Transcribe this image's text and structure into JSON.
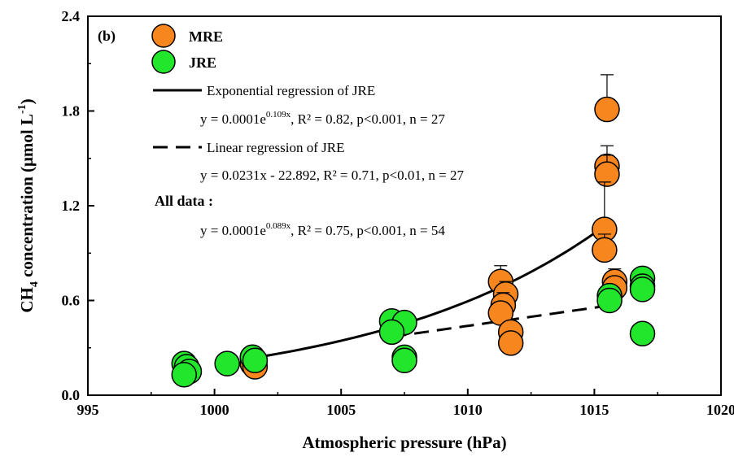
{
  "colors": {
    "MRE": "#f7861e",
    "JRE": "#22e62c",
    "stroke": "#000000"
  },
  "chart_data": {
    "type": "scatter",
    "panel_label": "(b)",
    "xlabel": "Atmospheric pressure (hPa)",
    "ylabel_parts": {
      "pre": "CH",
      "sub": "4",
      "mid": " concentration (μmol L",
      "sup": "-1",
      "post": ")"
    },
    "xlim": [
      995,
      1020
    ],
    "ylim": [
      0,
      2.4
    ],
    "x_ticks": [
      "995",
      "1000",
      "1005",
      "1010",
      "1015",
      "1020"
    ],
    "y_ticks": [
      "0.0",
      "0.6",
      "1.2",
      "1.8",
      "2.4"
    ],
    "series": [
      {
        "name": "MRE",
        "color": "#f7861e",
        "points": [
          {
            "x": 1001.5,
            "y": 0.24,
            "err": 0.03
          },
          {
            "x": 1001.6,
            "y": 0.22,
            "err": 0.03
          },
          {
            "x": 1001.5,
            "y": 0.2,
            "err": 0.03
          },
          {
            "x": 1001.6,
            "y": 0.18,
            "err": 0.03
          },
          {
            "x": 1011.3,
            "y": 0.72,
            "err": 0.1
          },
          {
            "x": 1011.5,
            "y": 0.64,
            "err": 0.08
          },
          {
            "x": 1011.4,
            "y": 0.57,
            "err": 0.08
          },
          {
            "x": 1011.3,
            "y": 0.52,
            "err": 0.07
          },
          {
            "x": 1011.7,
            "y": 0.4,
            "err": 0.05
          },
          {
            "x": 1011.7,
            "y": 0.33,
            "err": 0.05
          },
          {
            "x": 1015.5,
            "y": 1.81,
            "err": 0.22
          },
          {
            "x": 1015.5,
            "y": 1.45,
            "err": 0.13
          },
          {
            "x": 1015.5,
            "y": 1.4,
            "err": 0.12
          },
          {
            "x": 1015.4,
            "y": 1.05,
            "err": 0.3
          },
          {
            "x": 1015.4,
            "y": 0.92,
            "err": 0.1
          },
          {
            "x": 1015.8,
            "y": 0.72,
            "err": 0.08
          },
          {
            "x": 1015.8,
            "y": 0.68,
            "err": 0.06
          }
        ]
      },
      {
        "name": "JRE",
        "color": "#22e62c",
        "points": [
          {
            "x": 998.8,
            "y": 0.2,
            "err": 0.03
          },
          {
            "x": 998.9,
            "y": 0.18,
            "err": 0.03
          },
          {
            "x": 999.0,
            "y": 0.15,
            "err": 0.03
          },
          {
            "x": 998.8,
            "y": 0.13,
            "err": 0.03
          },
          {
            "x": 1000.5,
            "y": 0.2,
            "err": 0.03
          },
          {
            "x": 1001.5,
            "y": 0.24,
            "err": 0.03
          },
          {
            "x": 1001.6,
            "y": 0.22,
            "err": 0.03
          },
          {
            "x": 1007.0,
            "y": 0.47,
            "err": 0.05
          },
          {
            "x": 1007.5,
            "y": 0.46,
            "err": 0.04
          },
          {
            "x": 1007.0,
            "y": 0.4,
            "err": 0.05
          },
          {
            "x": 1007.5,
            "y": 0.24,
            "err": 0.04
          },
          {
            "x": 1007.5,
            "y": 0.22,
            "err": 0.04
          },
          {
            "x": 1015.6,
            "y": 0.63,
            "err": 0.05
          },
          {
            "x": 1015.6,
            "y": 0.6,
            "err": 0.06
          },
          {
            "x": 1016.9,
            "y": 0.74,
            "err": 0.06
          },
          {
            "x": 1016.9,
            "y": 0.69,
            "err": 0.06
          },
          {
            "x": 1016.9,
            "y": 0.67,
            "err": 0.06
          },
          {
            "x": 1016.9,
            "y": 0.39,
            "err": 0.05
          }
        ]
      }
    ],
    "fits": [
      {
        "kind": "exponential",
        "label": "Exponential regression of JRE",
        "a": 0.0001,
        "b": 0.109,
        "x0": 1000,
        "x_range": [
          1001.5,
          1015.6
        ],
        "style": "solid"
      },
      {
        "kind": "linear",
        "label": "Linear regression of JRE",
        "slope": 0.0231,
        "intercept": -22.892,
        "x_range": [
          1007,
          1016
        ],
        "style": "dashed"
      }
    ],
    "all_data_label": "All data :",
    "equations": [
      {
        "pre": "y = 0.0001e",
        "sup": "0.109x",
        "post": ", R² = 0.82, p<0.001, n = 27"
      },
      {
        "pre": "y = 0.0231x - 22.892",
        "sup": "",
        "post": ", R² = 0.71, p<0.01, n = 27"
      },
      {
        "pre": "y = 0.0001e",
        "sup": "0.089x",
        "post": ", R² = 0.75, p<0.001, n = 54"
      }
    ]
  }
}
